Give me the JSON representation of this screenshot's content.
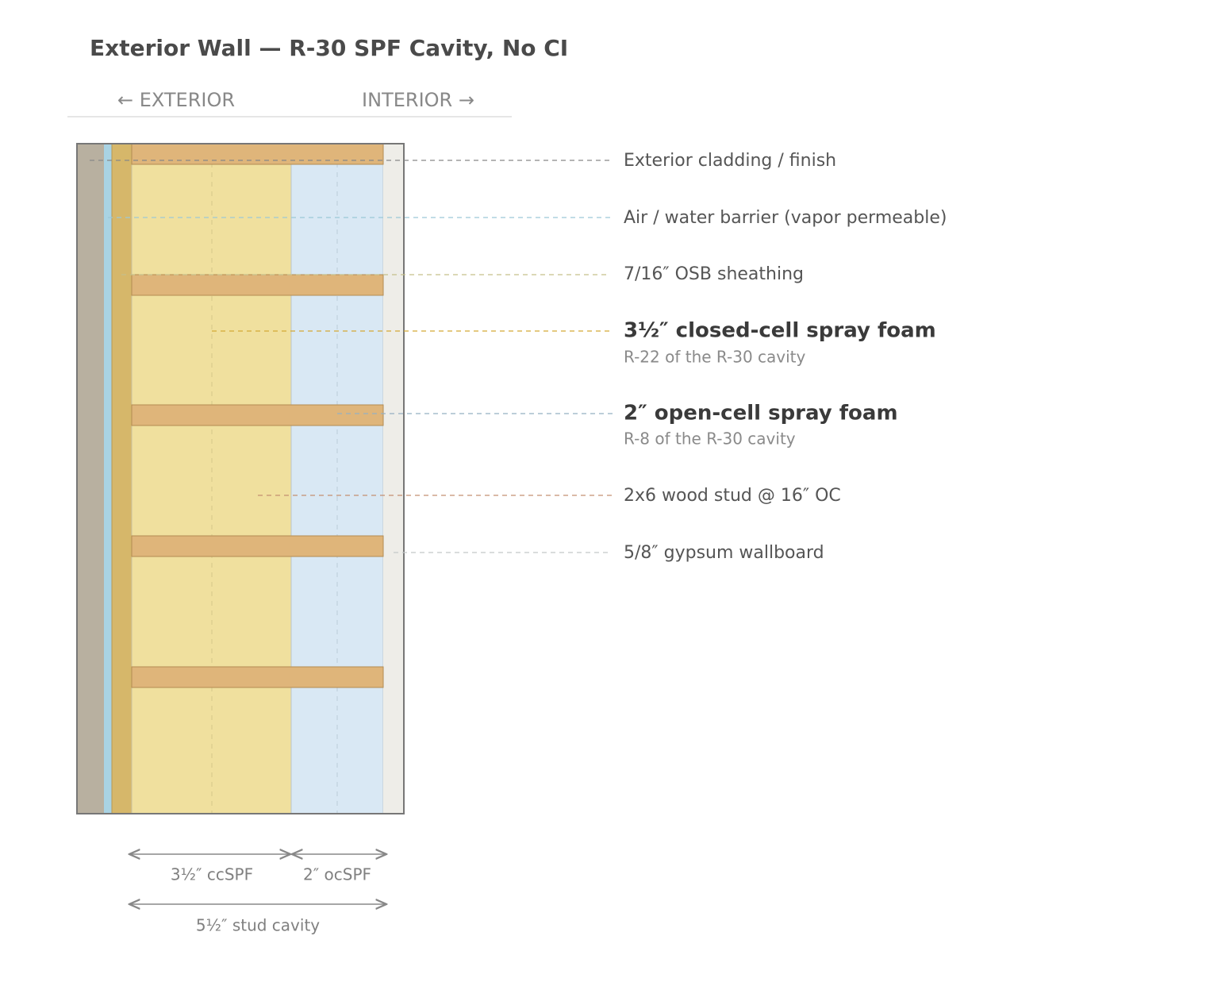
{
  "header": {
    "title": "Exterior Wall — R-30 SPF Cavity, No CI"
  },
  "orientation": {
    "exterior": "← EXTERIOR",
    "interior": "INTERIOR →"
  },
  "layers": [
    {
      "label": "Exterior cladding / finish"
    },
    {
      "label": "Air / water barrier (vapor permeable)"
    },
    {
      "label": "7/16″ OSB sheathing"
    },
    {
      "label": "3½″ closed-cell spray foam",
      "note": "R-22 of the R-30 cavity"
    },
    {
      "label": "2″ open-cell spray foam",
      "note": "R-8 of the R-30 cavity"
    },
    {
      "label": "2x6 wood stud @ 16″ OC"
    },
    {
      "label": "5/8″ gypsum wallboard"
    }
  ],
  "dimensions": {
    "cc": "3½″ ccSPF",
    "oc": "2″ ocSPF",
    "cavity": "5½″ stud cavity"
  }
}
